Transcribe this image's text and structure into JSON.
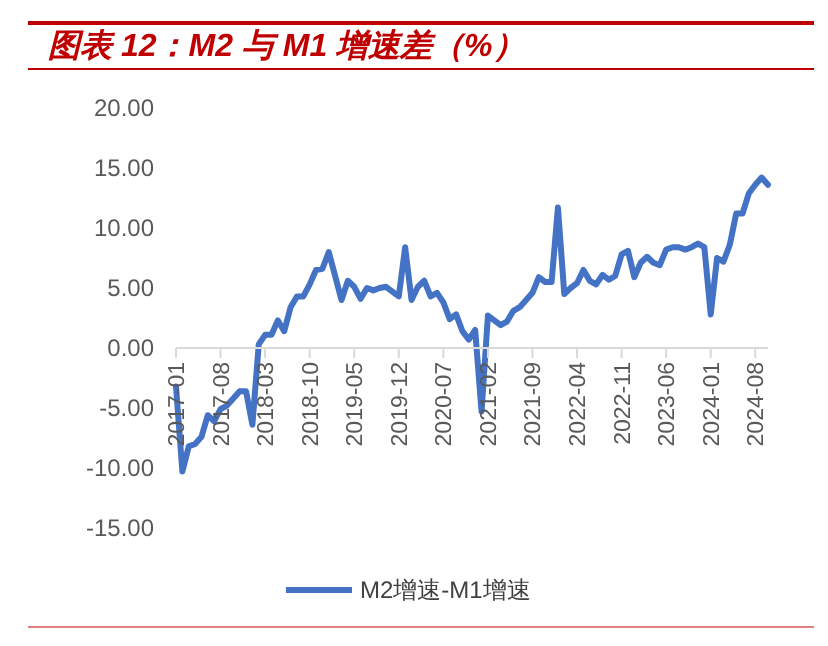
{
  "chart_data": {
    "type": "line",
    "title": "图表 12：M2 与 M1 增速差（%）",
    "categories": [
      "2017-01",
      null,
      null,
      null,
      null,
      null,
      null,
      "2017-08",
      null,
      null,
      null,
      null,
      null,
      null,
      "2018-03",
      null,
      null,
      null,
      null,
      null,
      null,
      "2018-10",
      null,
      null,
      null,
      null,
      null,
      null,
      "2019-05",
      null,
      null,
      null,
      null,
      null,
      null,
      "2019-12",
      null,
      null,
      null,
      null,
      null,
      null,
      "2020-07",
      null,
      null,
      null,
      null,
      null,
      null,
      "2021-02",
      null,
      null,
      null,
      null,
      null,
      null,
      "2021-09",
      null,
      null,
      null,
      null,
      null,
      null,
      "2022-04",
      null,
      null,
      null,
      null,
      null,
      null,
      "2022-11",
      null,
      null,
      null,
      null,
      null,
      null,
      "2023-06",
      null,
      null,
      null,
      null,
      null,
      null,
      "2024-01",
      null,
      null,
      null,
      null,
      null,
      null,
      "2024-08",
      null,
      null
    ],
    "series": [
      {
        "name": "M2增速-M1增速",
        "color": "#4472c4",
        "values": [
          -3.2,
          -10.3,
          -8.2,
          -8.0,
          -7.4,
          -5.6,
          -6.1,
          -5.1,
          -4.8,
          -4.2,
          -3.6,
          -3.6,
          -6.4,
          0.3,
          1.1,
          1.1,
          2.3,
          1.4,
          3.4,
          4.3,
          4.3,
          5.3,
          6.5,
          6.6,
          8.0,
          6.0,
          4.0,
          5.6,
          5.1,
          4.1,
          5.0,
          4.8,
          5.0,
          5.1,
          4.7,
          4.3,
          8.4,
          4.0,
          5.1,
          5.6,
          4.3,
          4.6,
          3.8,
          2.4,
          2.8,
          1.4,
          0.7,
          1.5,
          -5.3,
          2.7,
          2.3,
          1.9,
          2.2,
          3.1,
          3.4,
          4.0,
          4.6,
          5.9,
          5.5,
          5.5,
          11.7,
          4.5,
          5.0,
          5.4,
          6.5,
          5.6,
          5.3,
          6.1,
          5.7,
          6.0,
          7.8,
          8.1,
          5.9,
          7.1,
          7.6,
          7.1,
          6.9,
          8.2,
          8.4,
          8.4,
          8.2,
          8.4,
          8.7,
          8.4,
          2.8,
          7.5,
          7.2,
          8.6,
          11.2,
          11.2,
          12.9,
          13.6,
          14.2,
          13.6
        ]
      }
    ],
    "ylim": [
      -15,
      20
    ],
    "yticks": [
      {
        "value": 20,
        "label": "20.00"
      },
      {
        "value": 15,
        "label": "15.00"
      },
      {
        "value": 10,
        "label": "10.00"
      },
      {
        "value": 5,
        "label": "5.00"
      },
      {
        "value": 0,
        "label": "0.00"
      },
      {
        "value": -5,
        "label": "-5.00"
      },
      {
        "value": -10,
        "label": "-10.00"
      },
      {
        "value": -15,
        "label": "-15.00"
      }
    ],
    "grid": false,
    "legend": "bottom",
    "line_style": "solid",
    "marker": "none"
  }
}
